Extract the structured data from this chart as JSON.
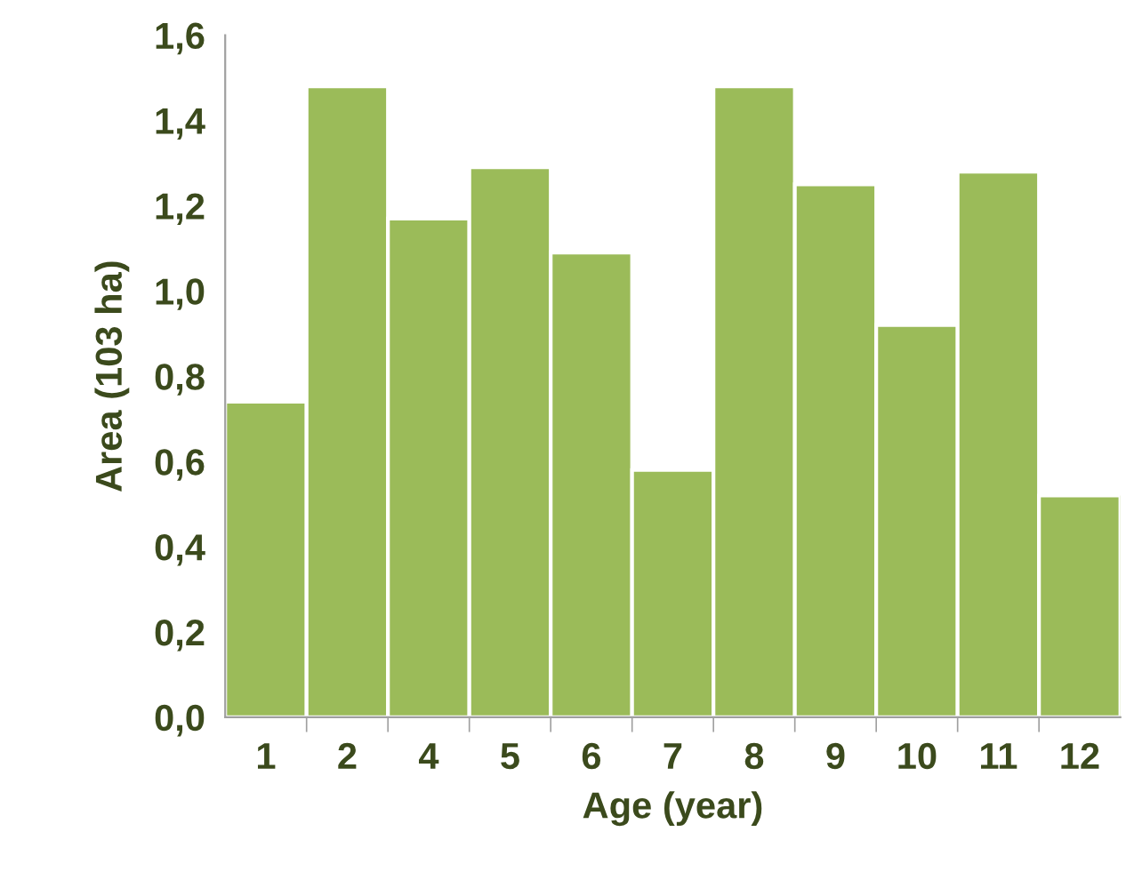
{
  "chart_data": {
    "type": "bar",
    "xlabel": "Age (year)",
    "ylabel": "Area (103 ha)",
    "categories": [
      "1",
      "2",
      "4",
      "5",
      "6",
      "7",
      "8",
      "9",
      "10",
      "11",
      "12"
    ],
    "values": [
      0.74,
      1.48,
      1.17,
      1.29,
      1.09,
      0.58,
      1.48,
      1.25,
      0.92,
      1.28,
      0.52
    ],
    "color": "#9bbb59",
    "ylim": [
      0,
      1.6
    ],
    "yticks": [
      {
        "value": 0,
        "label": "0,0"
      },
      {
        "value": 0.2,
        "label": "0,2"
      },
      {
        "value": 0.4,
        "label": "0,4"
      },
      {
        "value": 0.6,
        "label": "0,6"
      },
      {
        "value": 0.8,
        "label": "0,8"
      },
      {
        "value": 1.0,
        "label": "1,0"
      },
      {
        "value": 1.2,
        "label": "1,2"
      },
      {
        "value": 1.4,
        "label": "1,4"
      },
      {
        "value": 1.6,
        "label": "1,6"
      }
    ],
    "grid": false,
    "legend": false
  }
}
